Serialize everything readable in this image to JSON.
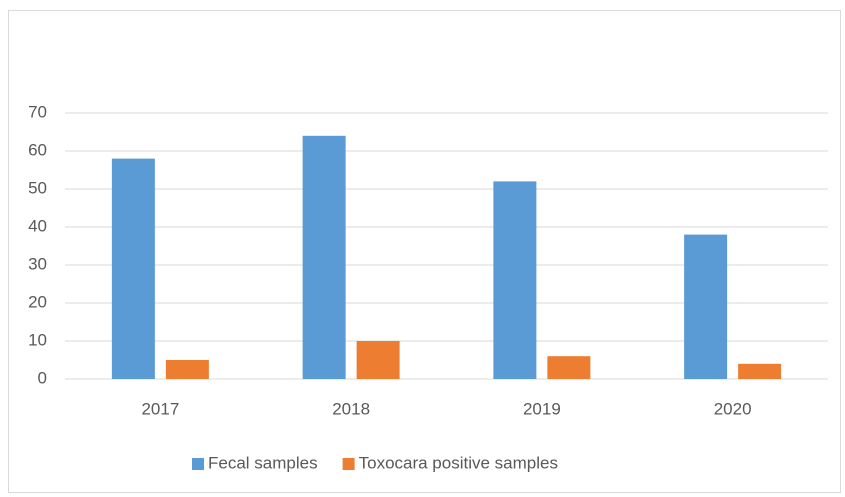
{
  "chart_data": {
    "type": "bar",
    "categories": [
      "2017",
      "2018",
      "2019",
      "2020"
    ],
    "series": [
      {
        "name": "Fecal samples",
        "color": "#5b9bd5",
        "values": [
          58,
          64,
          52,
          38
        ]
      },
      {
        "name": "Toxocara positive samples",
        "color": "#ed7d31",
        "values": [
          5,
          10,
          6,
          4
        ]
      }
    ],
    "ylim": [
      0,
      70
    ],
    "yticks": [
      0,
      10,
      20,
      30,
      40,
      50,
      60,
      70
    ],
    "grid": true,
    "legend": "bottom"
  }
}
